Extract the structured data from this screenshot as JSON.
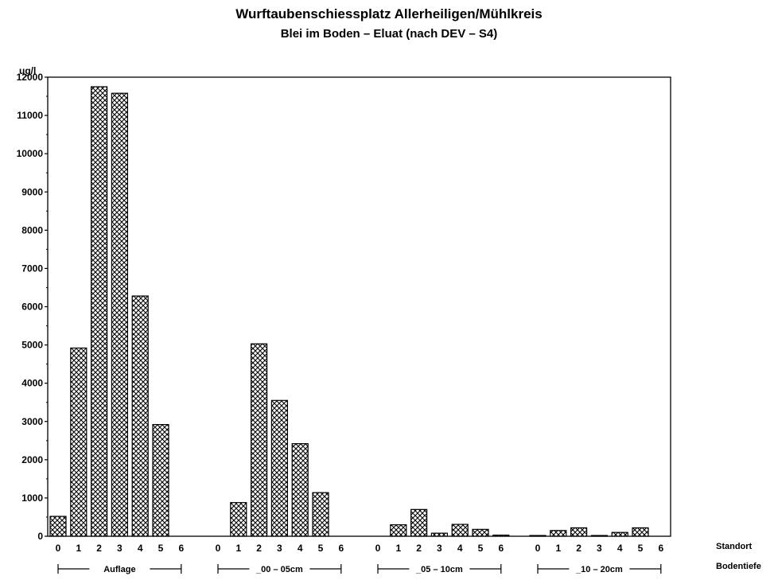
{
  "chart_data": {
    "type": "bar",
    "title": "Wurftaubenschiessplatz Allerheiligen/Mühlkreis",
    "subtitle": "Blei im Boden – Eluat (nach DEV – S4)",
    "ylabel": "ug/l",
    "ylim": [
      0,
      12000
    ],
    "yticks": [
      0,
      1000,
      2000,
      3000,
      4000,
      5000,
      6000,
      7000,
      8000,
      9000,
      10000,
      11000,
      12000
    ],
    "x_axis_label_1": "Standort",
    "x_axis_label_2": "Bodentiefe",
    "groups": [
      {
        "name": "Auflage",
        "categories": [
          "0",
          "1",
          "2",
          "3",
          "4",
          "5",
          "6"
        ],
        "values": [
          520,
          4920,
          11750,
          11580,
          6280,
          2920,
          0
        ]
      },
      {
        "name": "_00 – 05cm",
        "categories": [
          "0",
          "1",
          "2",
          "3",
          "4",
          "5",
          "6"
        ],
        "values": [
          0,
          880,
          5030,
          3550,
          2420,
          1140,
          0
        ]
      },
      {
        "name": "_05 – 10cm",
        "categories": [
          "0",
          "1",
          "2",
          "3",
          "4",
          "5",
          "6"
        ],
        "values": [
          0,
          300,
          700,
          80,
          310,
          180,
          30
        ]
      },
      {
        "name": "_10 – 20cm",
        "categories": [
          "0",
          "1",
          "2",
          "3",
          "4",
          "5",
          "6"
        ],
        "values": [
          20,
          150,
          220,
          20,
          100,
          220,
          0
        ]
      }
    ],
    "grid": false,
    "pattern": "crosshatch"
  }
}
